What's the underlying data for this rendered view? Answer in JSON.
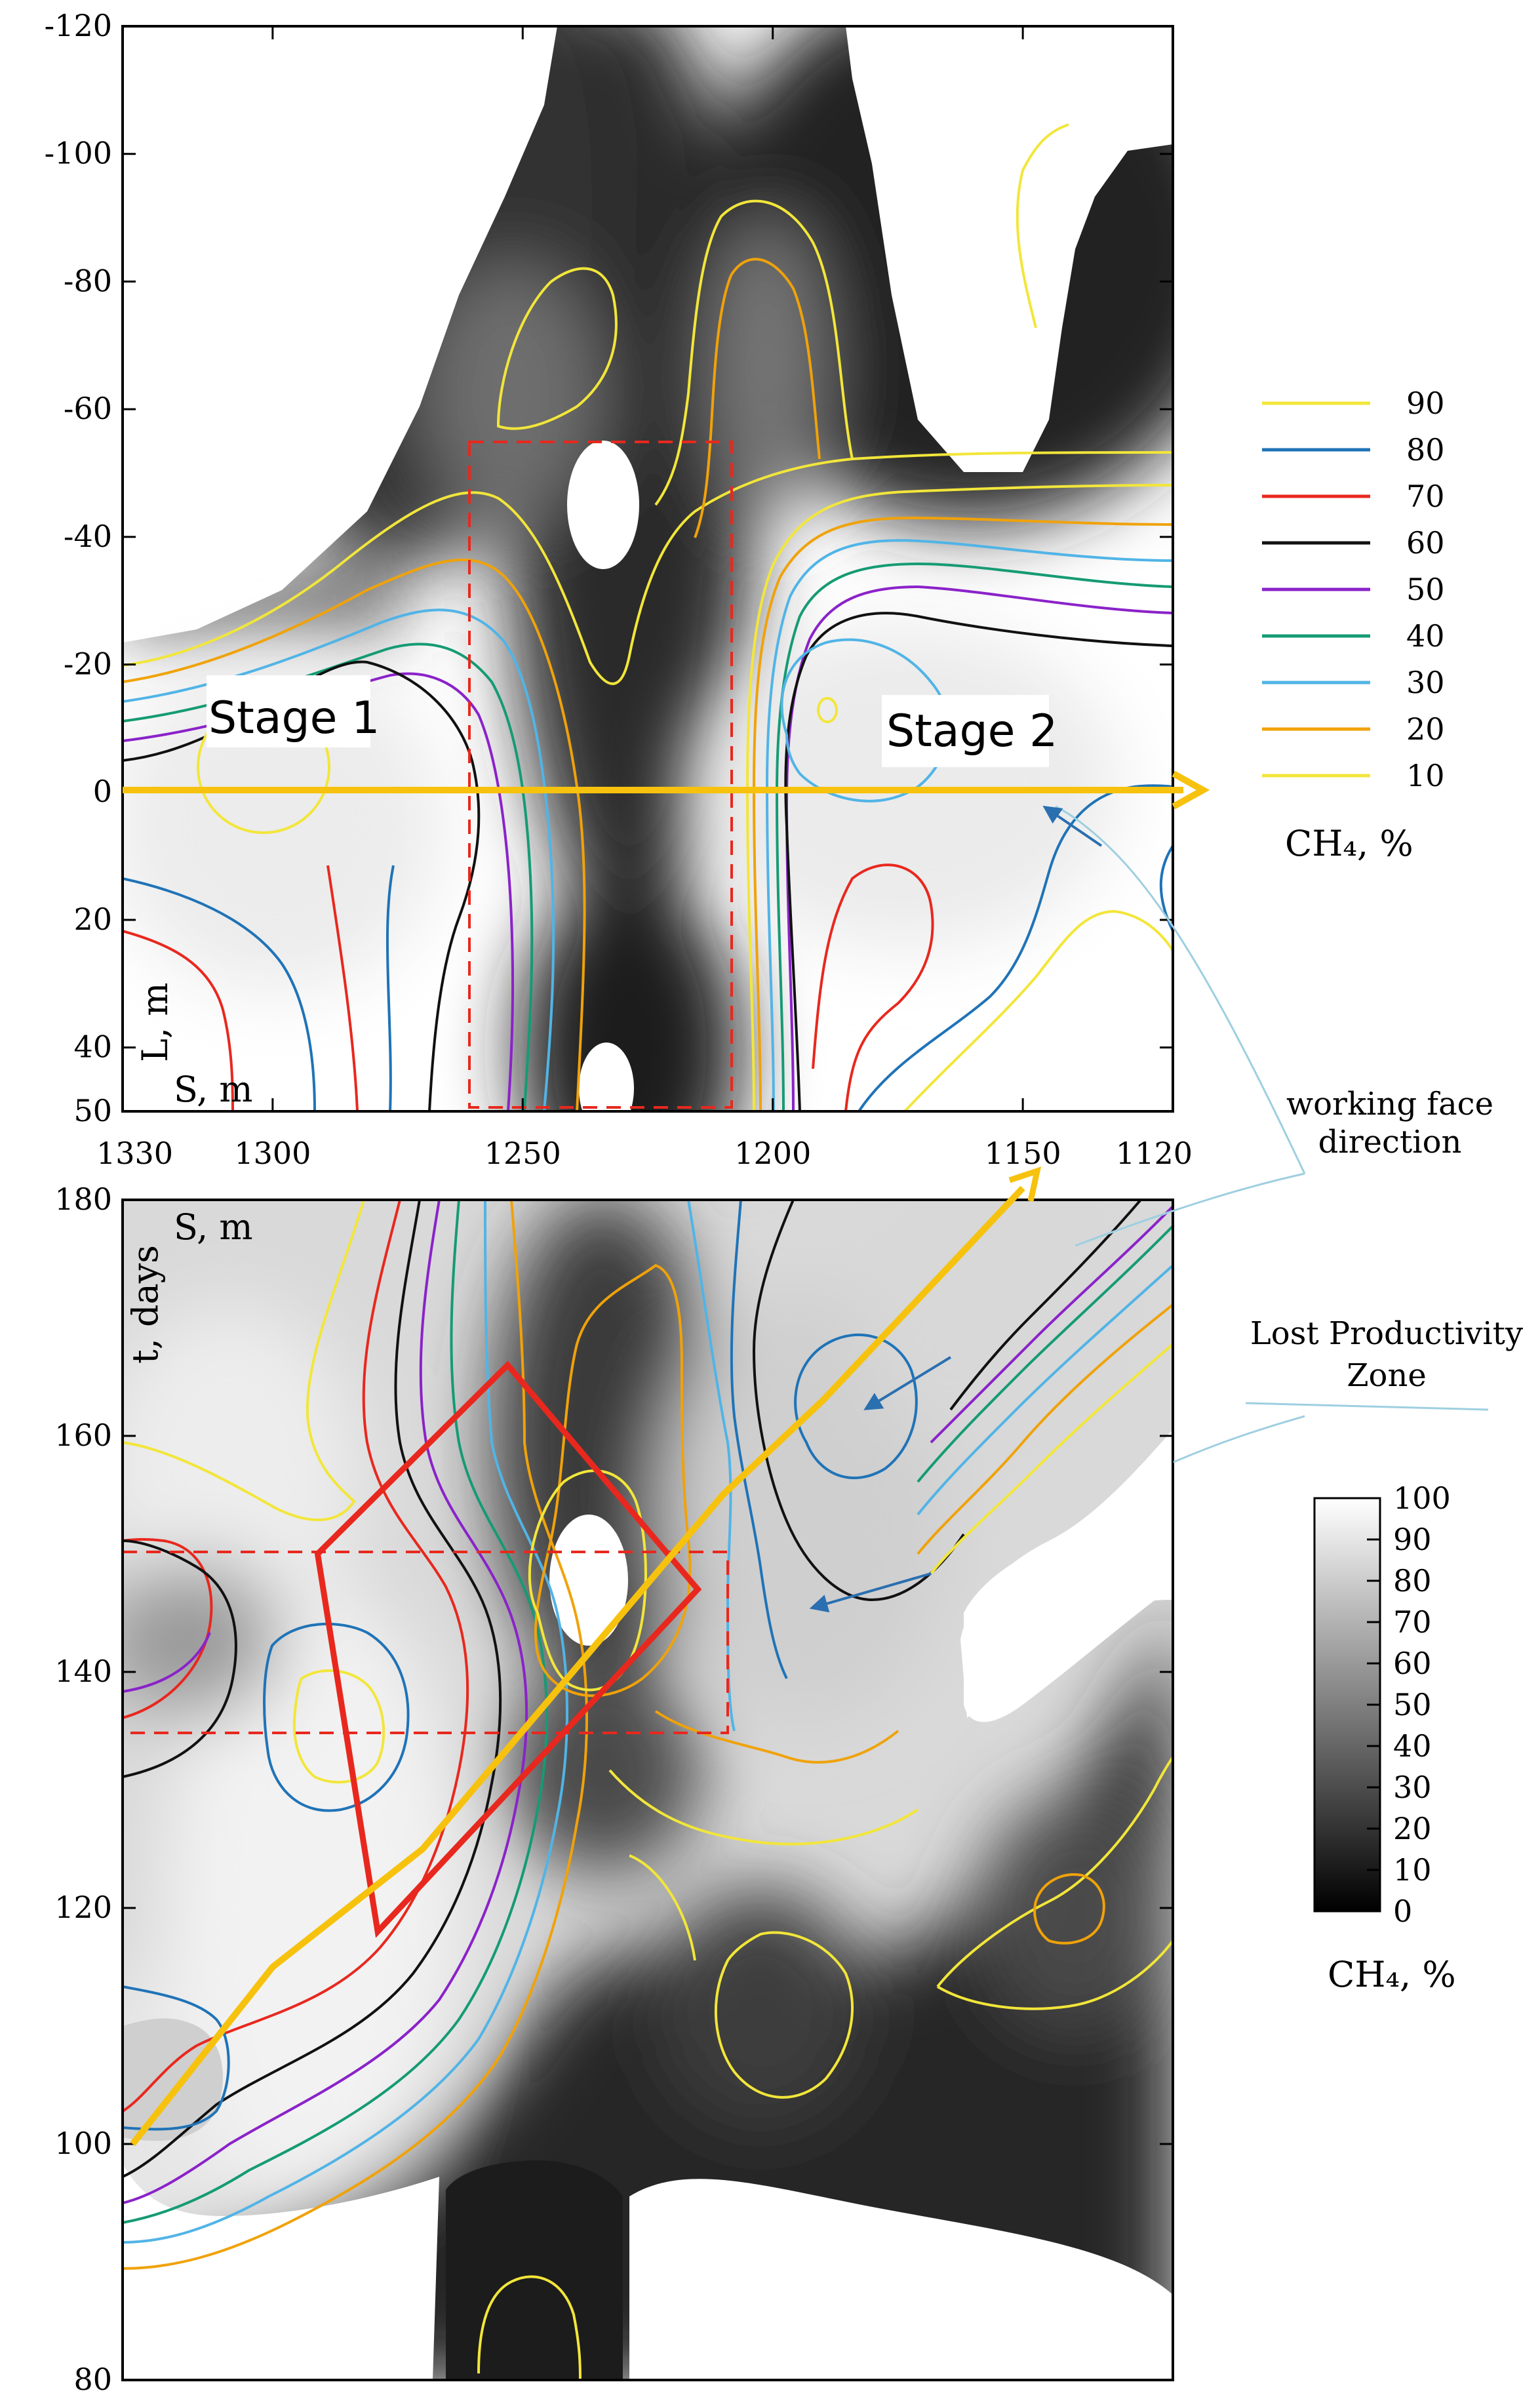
{
  "chart_data": [
    {
      "type": "heatmap",
      "xlabel": "S, m",
      "ylabel": "L, m",
      "x_ticks": [
        "1330",
        "1300",
        "1250",
        "1200",
        "1150",
        "1120"
      ],
      "x_tick_values": [
        1330,
        1300,
        1250,
        1200,
        1150,
        1120
      ],
      "xlim": [
        1330,
        1120
      ],
      "y_ticks": [
        "-120",
        "-100",
        "-80",
        "-60",
        "-40",
        "-20",
        "0",
        "20",
        "40",
        "50"
      ],
      "y_tick_values": [
        -120,
        -100,
        -80,
        -60,
        -40,
        -20,
        0,
        20,
        40,
        50
      ],
      "ylim": [
        -120,
        50
      ],
      "annotations": {
        "stage1": "Stage 1",
        "stage2": "Stage 2"
      },
      "working_face_arrow": {
        "y": 0,
        "from_x": 1330,
        "to_x": 1125
      },
      "dashed_region": {
        "x": [
          1268,
          1216
        ],
        "y": [
          -55,
          50
        ]
      },
      "contour_legend": {
        "levels": [
          "90",
          "80",
          "70",
          "60",
          "50",
          "40",
          "30",
          "20",
          "10"
        ],
        "colors": [
          "#f2e63a",
          "#1f73b7",
          "#e8281e",
          "#111111",
          "#8b22c9",
          "#159b74",
          "#51b4e6",
          "#f0a20a",
          "#f2e63a"
        ],
        "title": "CH₄, %"
      }
    },
    {
      "type": "heatmap",
      "xlabel": "S, m",
      "ylabel": "t, days",
      "xlim": [
        1330,
        1120
      ],
      "y_ticks": [
        "180",
        "160",
        "140",
        "120",
        "100",
        "80"
      ],
      "y_tick_values": [
        180,
        160,
        140,
        120,
        100,
        80
      ],
      "ylim": [
        80,
        180
      ],
      "annotations": {
        "working_face": "working face direction",
        "lost_productivity": "Lost Productivity Zone"
      },
      "trajectory": {
        "x": [
          1328,
          1300,
          1270,
          1250,
          1230,
          1210,
          1190,
          1170,
          1150
        ],
        "t": [
          100,
          115,
          125,
          135,
          145,
          155,
          163,
          172,
          181
        ]
      },
      "lost_productivity_zone": {
        "corners": [
          [
            1253,
            166
          ],
          [
            1215,
            147
          ],
          [
            1279,
            118
          ],
          [
            1291,
            150
          ]
        ]
      },
      "dashed_region": {
        "x": [
          1330,
          1210
        ],
        "t": [
          150,
          135
        ]
      },
      "colorbar": {
        "ticks": [
          "100",
          "90",
          "80",
          "70",
          "60",
          "50",
          "40",
          "30",
          "20",
          "10",
          "0"
        ],
        "tick_values": [
          100,
          90,
          80,
          70,
          60,
          50,
          40,
          30,
          20,
          10,
          0
        ],
        "title": "CH₄, %"
      }
    }
  ]
}
